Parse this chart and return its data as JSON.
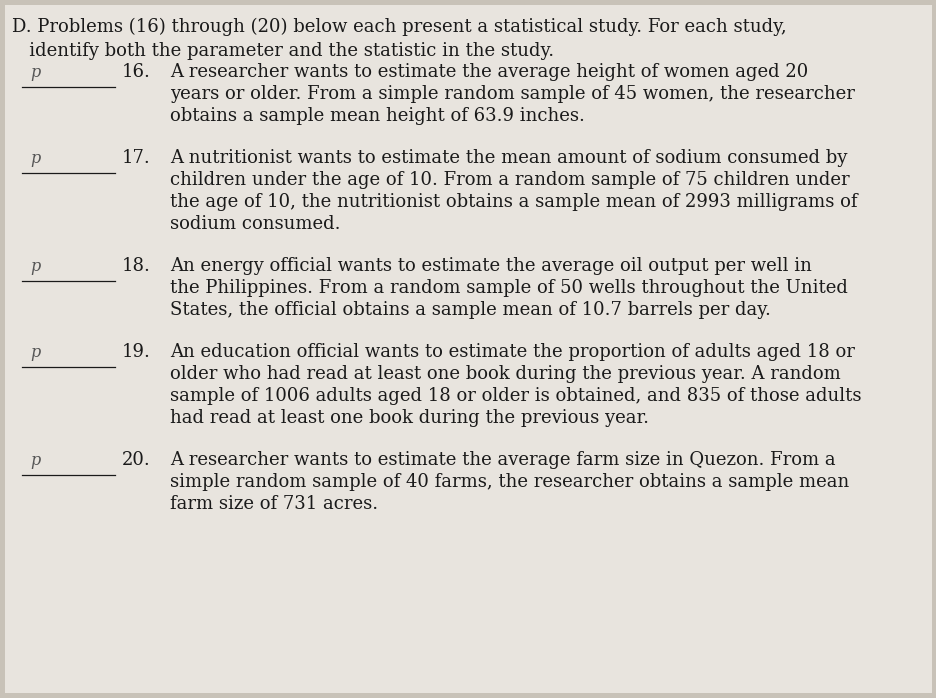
{
  "bg_color": "#c8c2b8",
  "text_color": "#1a1a1a",
  "inner_bg": "#e8e4de",
  "title_line1": "D. Problems (16) through (20) below each present a statistical study. For each study,",
  "title_line2": "   identify both the parameter and the statistic in the study.",
  "problems": [
    {
      "number": "16.",
      "label": "p",
      "lines": [
        "A researcher wants to estimate the average height of women aged 20",
        "years or older. From a simple random sample of 45 women, the researcher",
        "obtains a sample mean height of 63.9 inches."
      ]
    },
    {
      "number": "17.",
      "label": "p",
      "lines": [
        "A nutritionist wants to estimate the mean amount of sodium consumed by",
        "children under the age of 10. From a random sample of 75 children under",
        "the age of 10, the nutritionist obtains a sample mean of 2993 milligrams of",
        "sodium consumed."
      ]
    },
    {
      "number": "18.",
      "label": "p",
      "lines": [
        "An energy official wants to estimate the average oil output per well in",
        "the Philippines. From a random sample of 50 wells throughout the United",
        "States, the official obtains a sample mean of 10.7 barrels per day."
      ]
    },
    {
      "number": "19.",
      "label": "p",
      "lines": [
        "An education official wants to estimate the proportion of adults aged 18 or",
        "older who had read at least one book during the previous year. A random",
        "sample of 1006 adults aged 18 or older is obtained, and 835 of those adults",
        "had read at least one book during the previous year."
      ]
    },
    {
      "number": "20.",
      "label": "p",
      "lines": [
        "A researcher wants to estimate the average farm size in Quezon. From a",
        "simple random sample of 40 farms, the researcher obtains a sample mean",
        "farm size of 731 acres."
      ]
    }
  ],
  "font_size_title": 13.0,
  "font_size_body": 13.0,
  "font_size_label": 11.5,
  "font_size_number": 13.0
}
